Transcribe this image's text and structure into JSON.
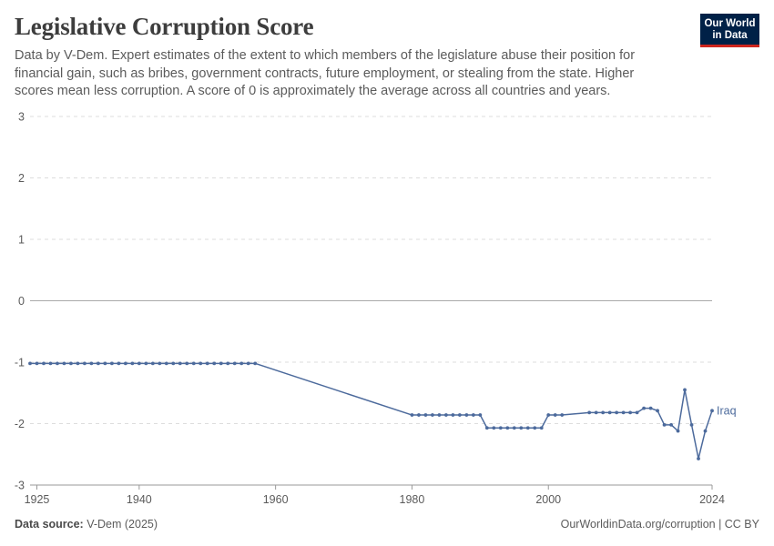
{
  "header": {
    "title": "Legislative Corruption Score",
    "subtitle": "Data by V-Dem. Expert estimates of the extent to which members of the legislature abuse their position for financial gain, such as bribes, government contracts, future employment, or stealing from the state. Higher scores mean less corruption. A score of 0 is approximately the average across all countries and years."
  },
  "logo": {
    "line1": "Our World",
    "line2": "in Data"
  },
  "footer": {
    "source_label": "Data source:",
    "source_value": " V-Dem (2025)",
    "link": "OurWorldinData.org/corruption | CC BY"
  },
  "colors": {
    "series": "#4c6a9c",
    "grid": "#dddddd",
    "zero": "#aaaaaa",
    "axis": "#5b5b5b"
  },
  "chart_data": {
    "type": "line",
    "title": "Legislative Corruption Score",
    "xlabel": "",
    "ylabel": "",
    "xlim": [
      1924,
      2024
    ],
    "ylim": [
      -3,
      3
    ],
    "x_ticks": [
      1925,
      1940,
      1960,
      1980,
      2000,
      2024
    ],
    "y_ticks": [
      -3,
      -2,
      -1,
      0,
      1,
      2,
      3
    ],
    "grid": true,
    "legend": "inline-right",
    "series": [
      {
        "name": "Iraq",
        "x": [
          1924,
          1925,
          1926,
          1927,
          1928,
          1929,
          1930,
          1931,
          1932,
          1933,
          1934,
          1935,
          1936,
          1937,
          1938,
          1939,
          1940,
          1941,
          1942,
          1943,
          1944,
          1945,
          1946,
          1947,
          1948,
          1949,
          1950,
          1951,
          1952,
          1953,
          1954,
          1955,
          1956,
          1957,
          1980,
          1981,
          1982,
          1983,
          1984,
          1985,
          1986,
          1987,
          1988,
          1989,
          1990,
          1991,
          1992,
          1993,
          1994,
          1995,
          1996,
          1997,
          1998,
          1999,
          2000,
          2001,
          2002,
          2006,
          2007,
          2008,
          2009,
          2010,
          2011,
          2012,
          2013,
          2014,
          2015,
          2016,
          2017,
          2018,
          2019,
          2020,
          2021,
          2022,
          2023,
          2024
        ],
        "y": [
          -1.02,
          -1.02,
          -1.02,
          -1.02,
          -1.02,
          -1.02,
          -1.02,
          -1.02,
          -1.02,
          -1.02,
          -1.02,
          -1.02,
          -1.02,
          -1.02,
          -1.02,
          -1.02,
          -1.02,
          -1.02,
          -1.02,
          -1.02,
          -1.02,
          -1.02,
          -1.02,
          -1.02,
          -1.02,
          -1.02,
          -1.02,
          -1.02,
          -1.02,
          -1.02,
          -1.02,
          -1.02,
          -1.02,
          -1.02,
          -1.86,
          -1.86,
          -1.86,
          -1.86,
          -1.86,
          -1.86,
          -1.86,
          -1.86,
          -1.86,
          -1.86,
          -1.86,
          -2.07,
          -2.07,
          -2.07,
          -2.07,
          -2.07,
          -2.07,
          -2.07,
          -2.07,
          -2.07,
          -1.86,
          -1.86,
          -1.86,
          -1.82,
          -1.82,
          -1.82,
          -1.82,
          -1.82,
          -1.82,
          -1.82,
          -1.82,
          -1.75,
          -1.75,
          -1.79,
          -2.02,
          -2.02,
          -2.12,
          -1.45,
          -2.02,
          -2.57,
          -2.12,
          -1.79
        ]
      }
    ]
  }
}
